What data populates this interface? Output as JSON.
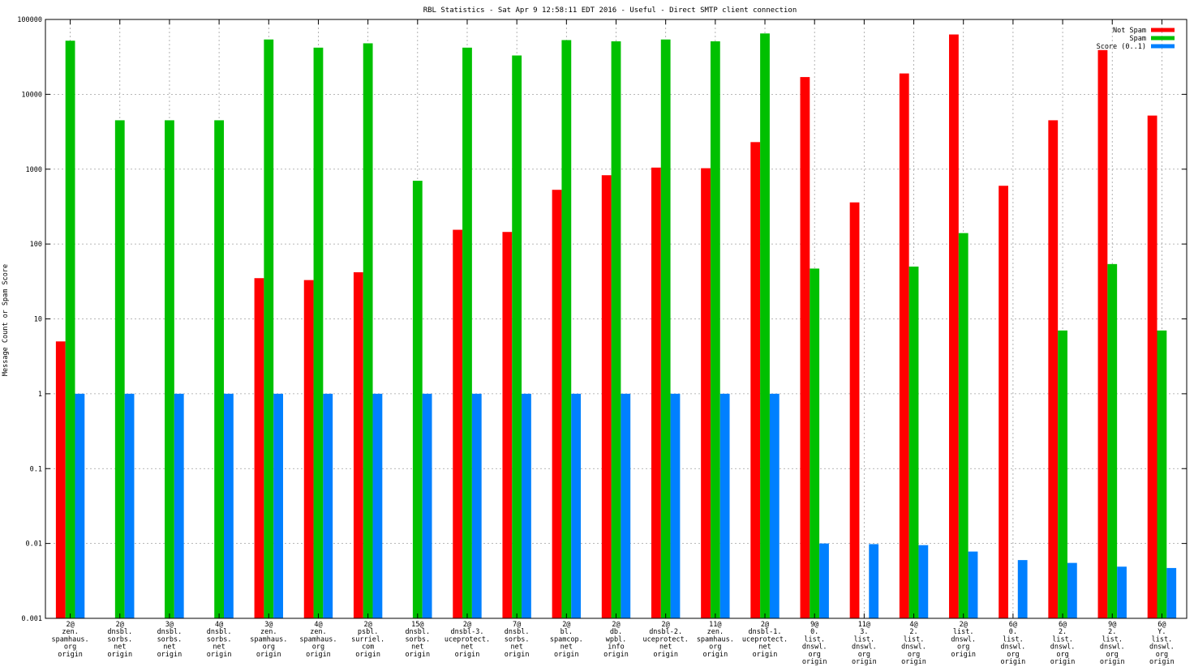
{
  "chart_data": {
    "type": "bar",
    "title": "RBL Statistics - Sat Apr  9 12:58:11 EDT 2016 - Useful - Direct SMTP client connection",
    "xlabel": "",
    "ylabel": "Message Count or Spam Score",
    "yscale": "log",
    "ylim": [
      0.001,
      100000
    ],
    "yticks": [
      "0.001",
      "0.01",
      "0.1",
      "1",
      "10",
      "100",
      "1000",
      "10000",
      "100000"
    ],
    "grid": true,
    "legend_position": "top-right",
    "categories": [
      [
        "2@",
        "zen.",
        "spamhaus.",
        "org",
        "origin"
      ],
      [
        "2@",
        "dnsbl.",
        "sorbs.",
        "net",
        "origin"
      ],
      [
        "3@",
        "dnsbl.",
        "sorbs.",
        "net",
        "origin"
      ],
      [
        "4@",
        "dnsbl.",
        "sorbs.",
        "net",
        "origin"
      ],
      [
        "3@",
        "zen.",
        "spamhaus.",
        "org",
        "origin"
      ],
      [
        "4@",
        "zen.",
        "spamhaus.",
        "org",
        "origin"
      ],
      [
        "2@",
        "psbl.",
        "surriel.",
        "com",
        "origin"
      ],
      [
        "15@",
        "dnsbl.",
        "sorbs.",
        "net",
        "origin"
      ],
      [
        "2@",
        "dnsbl-3.",
        "uceprotect.",
        "net",
        "origin"
      ],
      [
        "7@",
        "dnsbl.",
        "sorbs.",
        "net",
        "origin"
      ],
      [
        "2@",
        "bl.",
        "spamcop.",
        "net",
        "origin"
      ],
      [
        "2@",
        "db.",
        "wpbl.",
        "info",
        "origin"
      ],
      [
        "2@",
        "dnsbl-2.",
        "uceprotect.",
        "net",
        "origin"
      ],
      [
        "11@",
        "zen.",
        "spamhaus.",
        "org",
        "origin"
      ],
      [
        "2@",
        "dnsbl-1.",
        "uceprotect.",
        "net",
        "origin"
      ],
      [
        "9@",
        "0.",
        "list.",
        "dnswl.",
        "org",
        "origin"
      ],
      [
        "11@",
        "3.",
        "list.",
        "dnswl.",
        "org",
        "origin"
      ],
      [
        "4@",
        "2.",
        "list.",
        "dnswl.",
        "org",
        "origin"
      ],
      [
        "2@",
        "list.",
        "dnswl.",
        "org",
        "origin"
      ],
      [
        "6@",
        "0.",
        "list.",
        "dnswl.",
        "org",
        "origin"
      ],
      [
        "6@",
        "2.",
        "list.",
        "dnswl.",
        "org",
        "origin"
      ],
      [
        "9@",
        "2.",
        "list.",
        "dnswl.",
        "org",
        "origin"
      ],
      [
        "6@",
        "Y.",
        "list.",
        "dnswl.",
        "org",
        "origin"
      ]
    ],
    "series": [
      {
        "name": "Not Spam",
        "color": "#ff0000",
        "values": [
          5,
          null,
          null,
          null,
          35,
          33,
          42,
          null,
          155,
          145,
          530,
          830,
          1050,
          1030,
          2300,
          17000,
          360,
          19000,
          63000,
          600,
          4500,
          39000,
          5200
        ]
      },
      {
        "name": "Spam",
        "color": "#00c000",
        "values": [
          52000,
          4500,
          4500,
          4500,
          54000,
          42000,
          48000,
          700,
          42000,
          33000,
          53000,
          51000,
          54000,
          51000,
          65000,
          47,
          null,
          50,
          140,
          null,
          7,
          54,
          7
        ]
      },
      {
        "name": "Score (0..1)",
        "color": "#0080ff",
        "values": [
          1,
          1,
          1,
          1,
          1,
          1,
          1,
          1,
          1,
          1,
          1,
          1,
          1,
          1,
          1,
          0.01,
          0.0098,
          0.0095,
          0.0078,
          0.006,
          0.0055,
          0.0049,
          0.0047
        ]
      }
    ]
  }
}
